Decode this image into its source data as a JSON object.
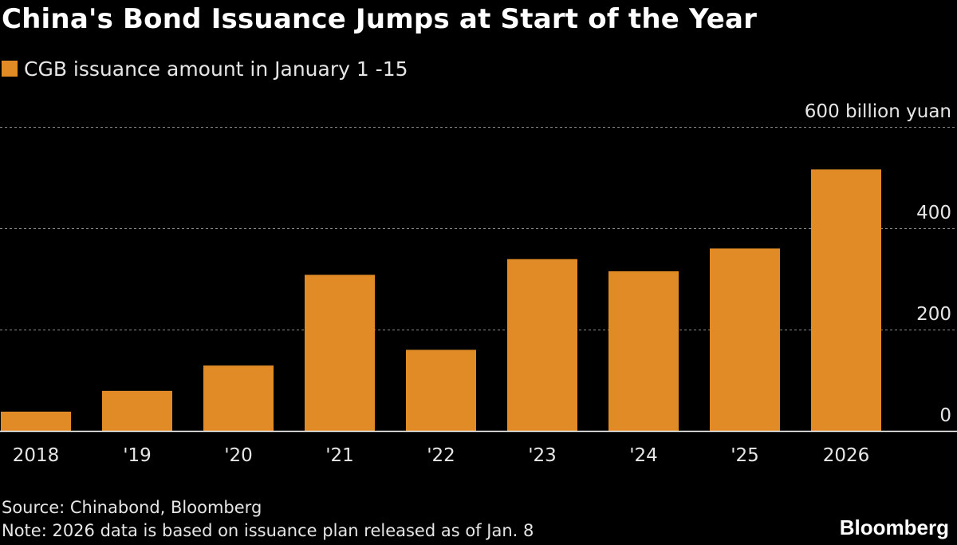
{
  "colors": {
    "background": "#000000",
    "bar": "#e08b26",
    "grid": "#8a8a8a",
    "axis": "#ffffff",
    "text": "#ffffff"
  },
  "chart_data": {
    "type": "bar",
    "title": "China's Bond Issuance Jumps at Start of the Year",
    "series": [
      {
        "name": "CGB issuance amount in January 1 -15",
        "values": [
          38,
          79,
          129,
          308,
          160,
          339,
          315,
          360,
          516
        ]
      }
    ],
    "categories": [
      "2018",
      "'19",
      "'20",
      "'21",
      "'22",
      "'23",
      "'24",
      "'25",
      "2026"
    ],
    "ylim": [
      0,
      600
    ],
    "yticks": [
      0,
      200,
      400,
      600
    ],
    "ytick_labels": [
      "0",
      "200",
      "400",
      "600 billion yuan"
    ],
    "ylabel_position": "right",
    "grid": "dashed horizontal",
    "legend_position": "top-left"
  },
  "footer": {
    "source": "Source: Chinabond, Bloomberg",
    "note": "Note: 2026 data is based on issuance plan released as of Jan. 8",
    "brand": "Bloomberg"
  }
}
